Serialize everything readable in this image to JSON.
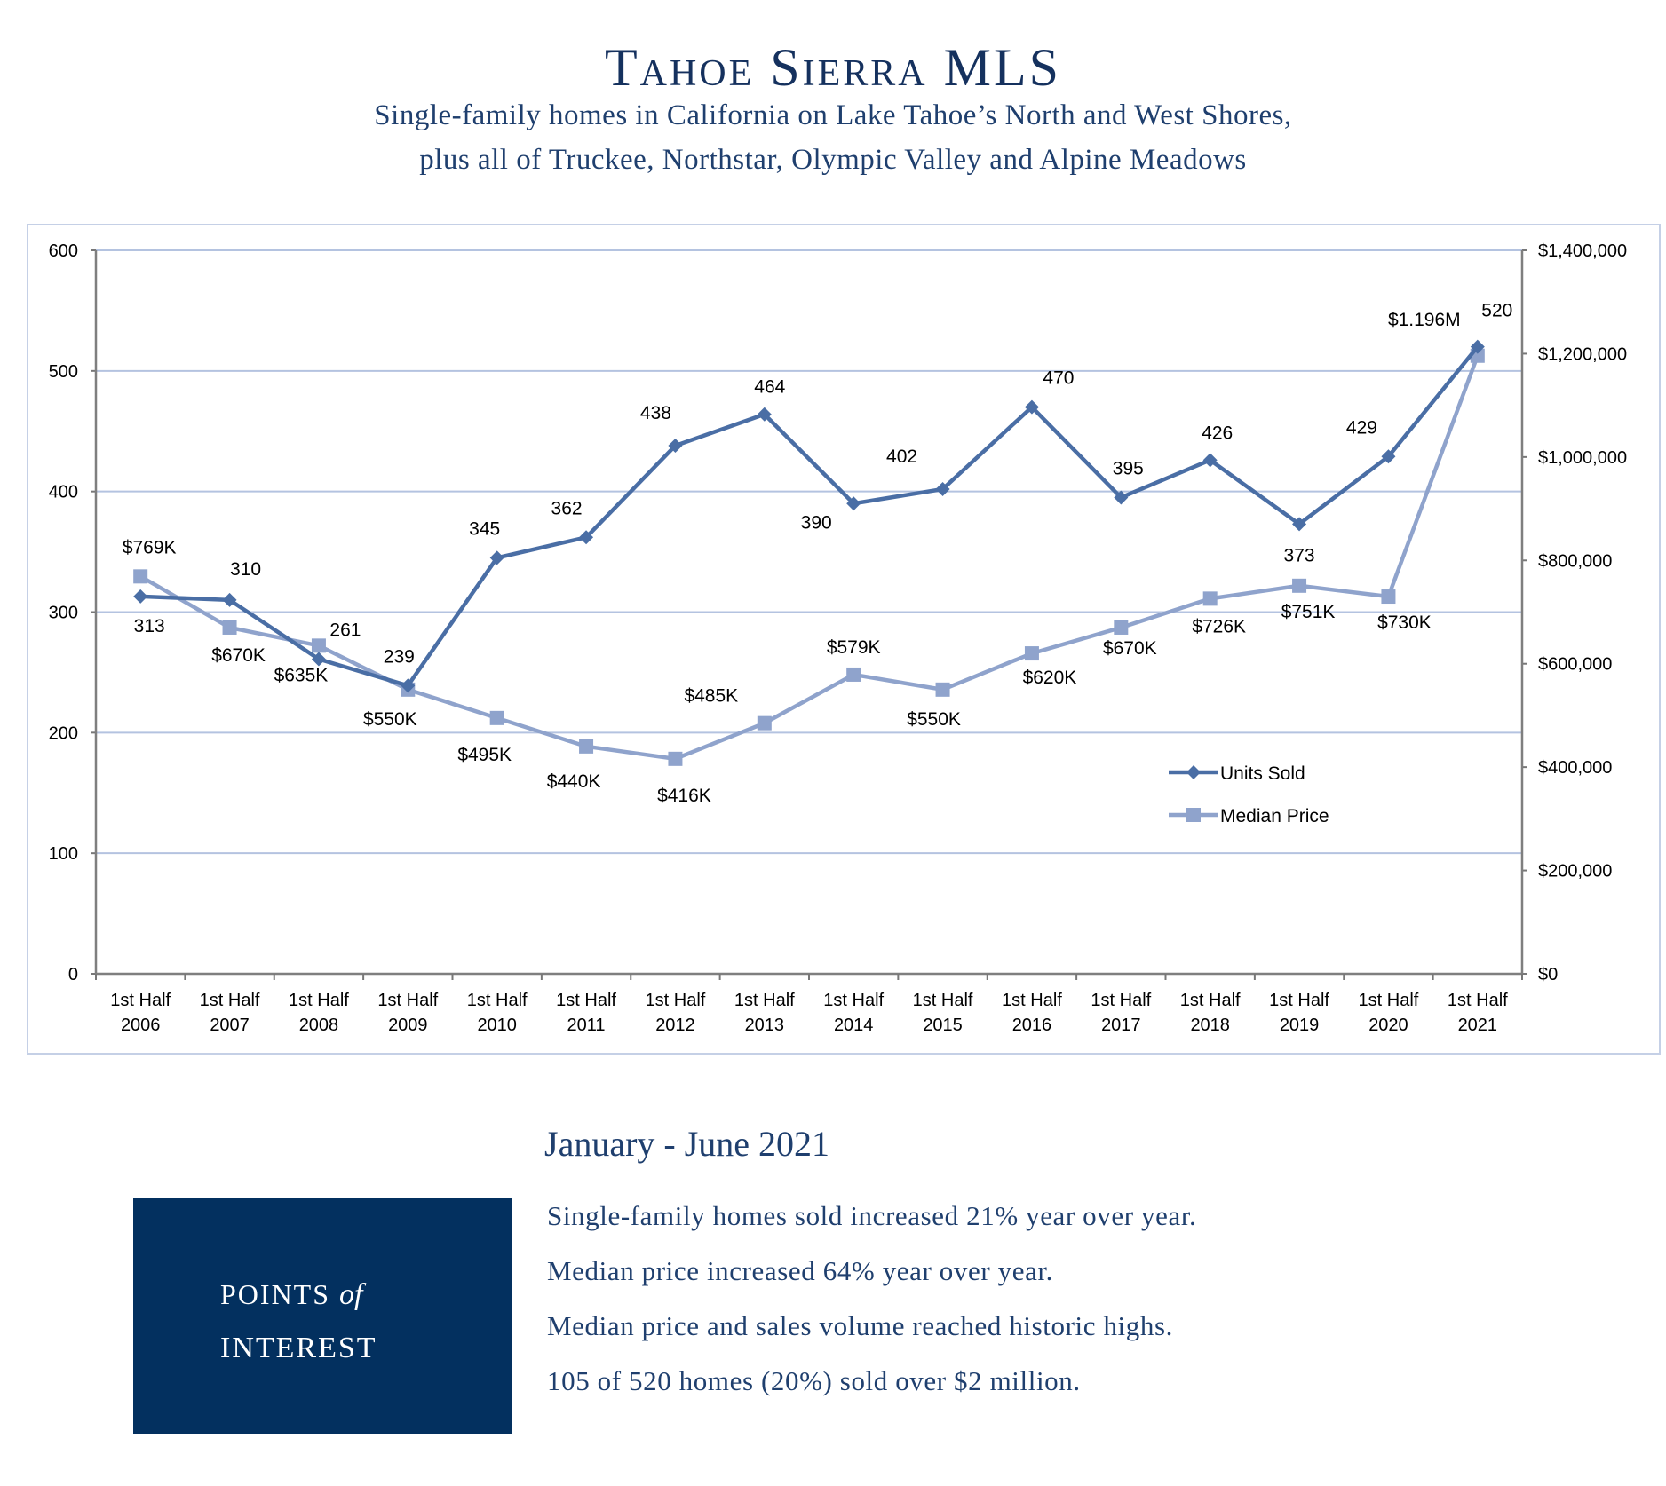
{
  "header": {
    "title": "Tahoe Sierra MLS",
    "subtitle_line1": "Single-family homes in California on Lake Tahoe’s North and West Shores,",
    "subtitle_line2": "plus all of Truckee, Northstar, Olympic Valley and Alpine Meadows"
  },
  "chart_data": {
    "type": "line",
    "categories": [
      "1st Half 2006",
      "1st Half 2007",
      "1st Half 2008",
      "1st Half 2009",
      "1st Half 2010",
      "1st Half 2011",
      "1st Half 2012",
      "1st Half 2013",
      "1st Half 2014",
      "1st Half 2015",
      "1st Half 2016",
      "1st Half 2017",
      "1st Half 2018",
      "1st Half 2019",
      "1st Half 2020",
      "1st Half 2021"
    ],
    "category_lines": [
      [
        "1st Half",
        "2006"
      ],
      [
        "1st Half",
        "2007"
      ],
      [
        "1st Half",
        "2008"
      ],
      [
        "1st Half",
        "2009"
      ],
      [
        "1st Half",
        "2010"
      ],
      [
        "1st Half",
        "2011"
      ],
      [
        "1st Half",
        "2012"
      ],
      [
        "1st Half",
        "2013"
      ],
      [
        "1st Half",
        "2014"
      ],
      [
        "1st Half",
        "2015"
      ],
      [
        "1st Half",
        "2016"
      ],
      [
        "1st Half",
        "2017"
      ],
      [
        "1st Half",
        "2018"
      ],
      [
        "1st Half",
        "2019"
      ],
      [
        "1st Half",
        "2020"
      ],
      [
        "1st Half",
        "2021"
      ]
    ],
    "series": [
      {
        "name": "Units Sold",
        "axis": "left",
        "marker": "diamond",
        "color": "#4a6ea5",
        "values": [
          313,
          310,
          261,
          239,
          345,
          362,
          438,
          464,
          390,
          402,
          470,
          395,
          426,
          373,
          429,
          520
        ],
        "labels": [
          "313",
          "310",
          "261",
          "239",
          "345",
          "362",
          "438",
          "464",
          "390",
          "402",
          "470",
          "395",
          "426",
          "373",
          "429",
          "520"
        ]
      },
      {
        "name": "Median Price",
        "axis": "right",
        "marker": "square",
        "color": "#8fa3cc",
        "values": [
          769000,
          670000,
          635000,
          550000,
          495000,
          440000,
          416000,
          485000,
          579000,
          550000,
          620000,
          670000,
          726000,
          751000,
          730000,
          1196000
        ],
        "labels": [
          "$769K",
          "$670K",
          "$635K",
          "$550K",
          "$495K",
          "$440K",
          "$416K",
          "$485K",
          "$579K",
          "$550K",
          "$620K",
          "$670K",
          "$726K",
          "$751K",
          "$730K",
          "$1.196M"
        ]
      }
    ],
    "y_left": {
      "min": 0,
      "max": 600,
      "ticks": [
        "0",
        "100",
        "200",
        "300",
        "400",
        "500",
        "600"
      ]
    },
    "y_right": {
      "min": 0,
      "max": 1400000,
      "ticks": [
        "$0",
        "$200,000",
        "$400,000",
        "$600,000",
        "$800,000",
        "$1,000,000",
        "$1,200,000",
        "$1,400,000"
      ]
    },
    "grid": true,
    "legend_position": "bottom-right inside plot"
  },
  "summary": {
    "period": "January - June 2021",
    "box_line1": "POINTS",
    "box_of": "of",
    "box_line2": "INTEREST",
    "points": [
      "Single-family homes sold increased 21% year over year.",
      "Median price increased 64% year over year.",
      "Median price and sales volume reached historic highs.",
      "105 of 520 homes (20%) sold over $2 million."
    ]
  }
}
